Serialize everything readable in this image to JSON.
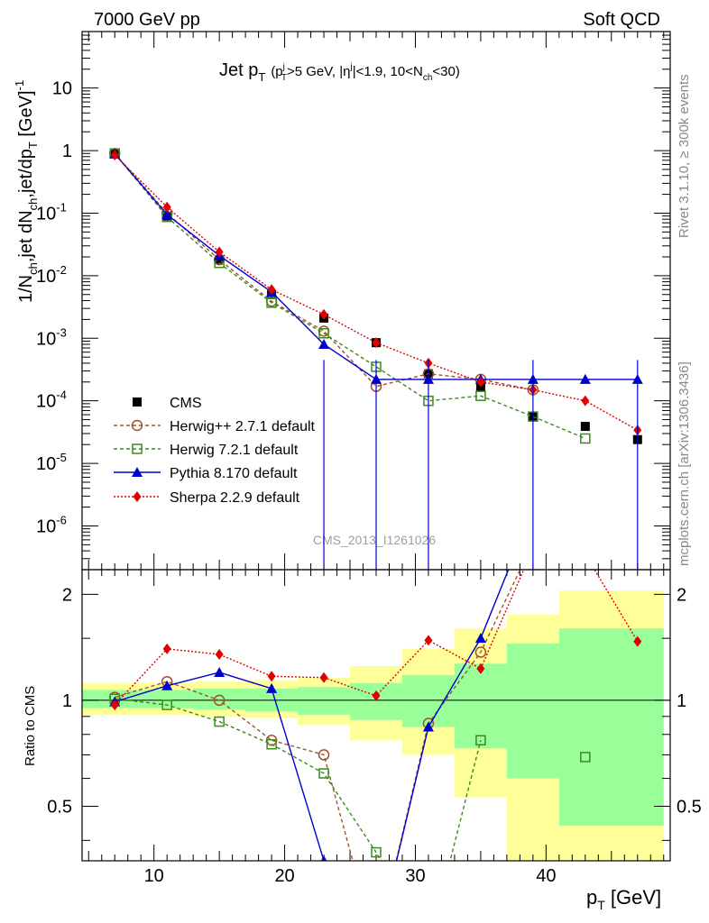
{
  "header": {
    "left": "7000 GeV pp",
    "right": "Soft QCD"
  },
  "side": {
    "rivet": "Rivet 3.1.10, ≥ 300k events",
    "mcplots": "mcplots.cern.ch [arXiv:1306.3436]"
  },
  "title": {
    "main": "Jet p",
    "main_sub": "T",
    "cut": "(p",
    "cut_sup": "j",
    "cut_sub": "T",
    "cut2": ">5 GeV, |η",
    "cut2_sup": "j",
    "cut3": "|<1.9, 10<N",
    "cut3_sub": "ch",
    "cut4": "<30)"
  },
  "watermark": "CMS_2013_I1261026",
  "yaxis_top": {
    "l1": "1/N",
    "l1_sub": "ch",
    "l2": ",jet dN",
    "l2_sub": "ch",
    "l3": ",jet/dp",
    "l3_sub": "T",
    "l4": " [GeV]",
    "l4_sup": "-1"
  },
  "yaxis_bottom": "Ratio to CMS",
  "xaxis": {
    "label": "p",
    "label_sub": "T",
    "label_unit": " [GeV]"
  },
  "colors": {
    "cms": "#000000",
    "herwigpp": "#a0522d",
    "herwig7": "#3a8a1e",
    "pythia": "#0000cc",
    "sherpa": "#e00000",
    "band_yellow": "#ffff99",
    "band_green": "#99ff99"
  },
  "chart_data": [
    {
      "type": "line",
      "panel": "main",
      "yscale": "log",
      "xlim": [
        4.5,
        49.5
      ],
      "ylim": [
        2e-07,
        80
      ],
      "x_ticks": [
        10,
        20,
        30,
        40
      ],
      "y_ticks": [
        1e-06,
        1e-05,
        0.0001,
        0.001,
        0.01,
        0.1,
        1,
        10
      ],
      "y_tick_labels": [
        {
          "base": "10",
          "exp": "-6"
        },
        {
          "base": "10",
          "exp": "-5"
        },
        {
          "base": "10",
          "exp": "-4"
        },
        {
          "base": "10",
          "exp": "-3"
        },
        {
          "base": "10",
          "exp": "-2"
        },
        {
          "base": "10",
          "exp": "-1"
        },
        {
          "base": "1",
          "exp": ""
        },
        {
          "base": "10",
          "exp": ""
        }
      ],
      "x": [
        7,
        11,
        15,
        19,
        23,
        27,
        31,
        35,
        39,
        43,
        47
      ],
      "series": [
        {
          "name": "CMS",
          "key": "cms",
          "values": [
            0.9,
            0.09,
            0.018,
            0.005,
            0.0021,
            0.00085,
            0.00027,
            0.00017,
            5.6e-05,
            3.9e-05,
            2.4e-05
          ]
        },
        {
          "name": "Herwig++ 2.7.1 default",
          "key": "herwigpp",
          "values": [
            0.9,
            0.1,
            0.018,
            0.0039,
            0.0013,
            0.00017,
            0.00027,
            0.00022,
            0.00015,
            null,
            null
          ]
        },
        {
          "name": "Herwig 7.2.1 default",
          "key": "herwig7",
          "values": [
            0.9,
            0.087,
            0.016,
            0.0037,
            0.0012,
            0.00035,
            0.0001,
            0.00012,
            5.6e-05,
            2.5e-05,
            null
          ]
        },
        {
          "name": "Pythia 8.170 default",
          "key": "pythia",
          "values": [
            0.89,
            0.095,
            0.021,
            0.0055,
            0.0008,
            0.00022,
            0.00022,
            0.00022,
            0.00022,
            0.00022,
            0.00022
          ]
        },
        {
          "name": "Sherpa 2.2.9 default",
          "key": "sherpa",
          "values": [
            0.85,
            0.125,
            0.024,
            0.006,
            0.0024,
            0.00085,
            0.0004,
            0.0002,
            0.00015,
            0.0001,
            3.4e-05
          ]
        }
      ]
    },
    {
      "type": "line",
      "panel": "ratio",
      "yscale": "log",
      "xlim": [
        4.5,
        49.5
      ],
      "ylim": [
        0.35,
        2.35
      ],
      "x_ticks": [
        10,
        20,
        30,
        40
      ],
      "x_tick_labels": [
        "10",
        "20",
        "30",
        "40"
      ],
      "y_ticks": [
        0.5,
        1,
        2
      ],
      "y_tick_labels": [
        "0.5",
        "1",
        "2"
      ],
      "x": [
        7,
        11,
        15,
        19,
        23,
        27,
        31,
        35,
        39,
        43,
        47
      ],
      "band_edges": [
        4.5,
        9,
        13,
        17,
        21,
        25,
        29,
        33,
        37,
        41,
        45,
        49
      ],
      "band_yellow": [
        [
          0.91,
          1.12
        ],
        [
          0.91,
          1.12
        ],
        [
          0.9,
          1.13
        ],
        [
          0.89,
          1.14
        ],
        [
          0.85,
          1.16
        ],
        [
          0.77,
          1.25
        ],
        [
          0.7,
          1.4
        ],
        [
          0.53,
          1.6
        ],
        [
          0.35,
          1.75
        ],
        [
          0.35,
          2.05
        ],
        [
          0.35,
          2.05
        ]
      ],
      "band_green": [
        [
          0.95,
          1.07
        ],
        [
          0.95,
          1.07
        ],
        [
          0.94,
          1.08
        ],
        [
          0.93,
          1.08
        ],
        [
          0.91,
          1.09
        ],
        [
          0.88,
          1.12
        ],
        [
          0.84,
          1.18
        ],
        [
          0.73,
          1.27
        ],
        [
          0.6,
          1.45
        ],
        [
          0.44,
          1.6
        ],
        [
          0.44,
          1.6
        ]
      ],
      "series": [
        {
          "name": "Herwig++ 2.7.1 default",
          "key": "herwigpp",
          "values": [
            1.02,
            1.13,
            1.0,
            0.77,
            0.7,
            0.2,
            0.86,
            1.37,
            2.8,
            null,
            null
          ]
        },
        {
          "name": "Herwig 7.2.1 default",
          "key": "herwig7",
          "values": [
            1.01,
            0.97,
            0.87,
            0.75,
            0.62,
            0.37,
            0.2,
            0.77,
            null,
            0.69,
            null
          ]
        },
        {
          "name": "Pythia 8.170 default",
          "key": "pythia",
          "values": [
            0.99,
            1.1,
            1.2,
            1.08,
            0.35,
            0.2,
            0.84,
            1.5,
            3.5,
            null,
            null
          ]
        },
        {
          "name": "Sherpa 2.2.9 default",
          "key": "sherpa",
          "values": [
            0.97,
            1.4,
            1.35,
            1.17,
            1.16,
            1.03,
            1.48,
            1.23,
            2.7,
            2.6,
            1.47
          ]
        }
      ]
    }
  ]
}
